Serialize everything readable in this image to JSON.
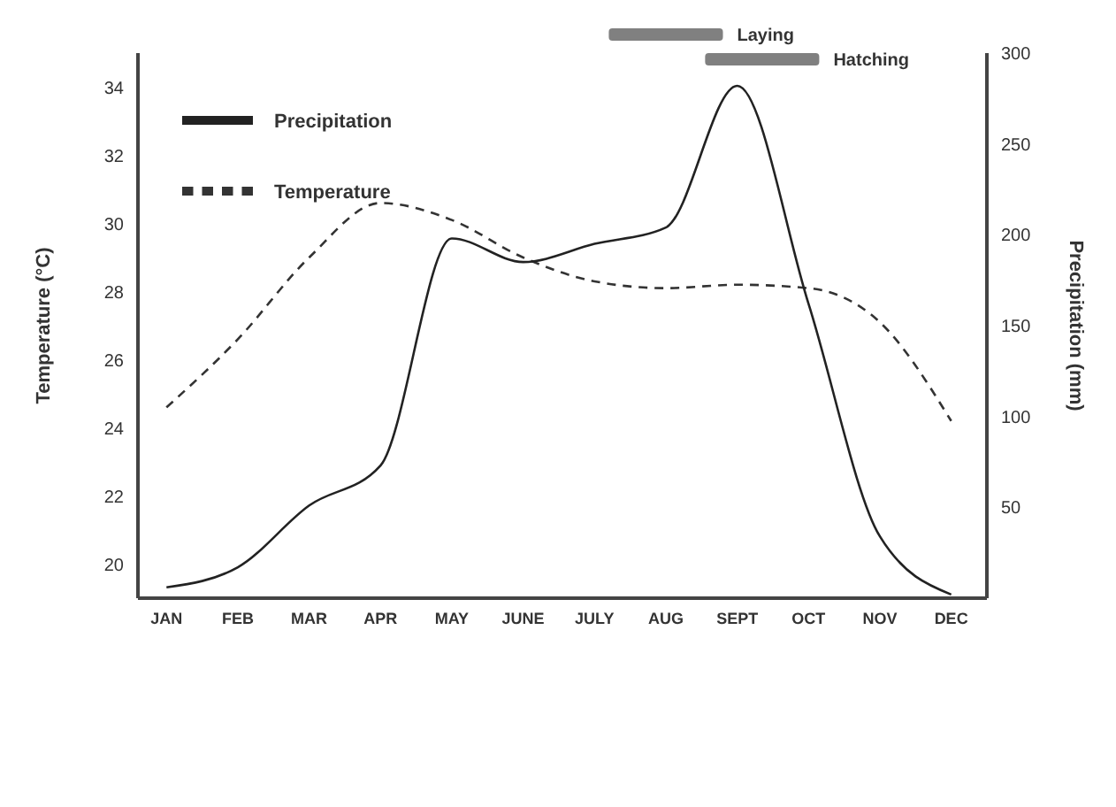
{
  "chart_data": {
    "type": "line",
    "ylabel": "Temperature (°C)",
    "y2label": "Precipitation (mm)",
    "categories": [
      "JAN",
      "FEB",
      "MAR",
      "APR",
      "MAY",
      "JUNE",
      "JULY",
      "AUG",
      "SEPT",
      "OCT",
      "NOV",
      "DEC"
    ],
    "ylim": [
      19,
      35
    ],
    "yticks": [
      20,
      22,
      24,
      26,
      28,
      30,
      32,
      34
    ],
    "y2lim": [
      0,
      300
    ],
    "y2ticks": [
      50,
      100,
      150,
      200,
      250,
      300
    ],
    "series": [
      {
        "name": "Temperature",
        "color": "#333333",
        "line_style": "dashed",
        "values": [
          24.6,
          26.6,
          29.0,
          30.6,
          30.1,
          29.0,
          28.3,
          28.1,
          28.2,
          28.1,
          27.1,
          24.2
        ]
      },
      {
        "name": "Precipitation",
        "color": "#222222",
        "line_style": "solid",
        "axis": "y2",
        "values": [
          6,
          17,
          51,
          73,
          198,
          185,
          195,
          204,
          282,
          162,
          34,
          2
        ]
      }
    ],
    "annotations": [
      "Laying",
      "Hatching"
    ],
    "legend": "top left",
    "marker": "none"
  }
}
